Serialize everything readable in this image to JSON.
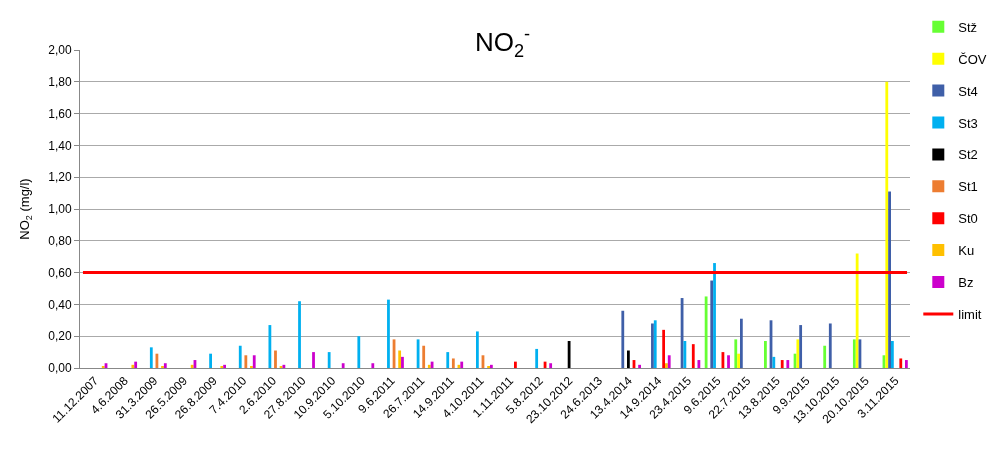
{
  "chart_data": {
    "type": "bar",
    "title": "NO$_{2}$$^{-}$",
    "ylabel": "NO$_{2}$ (mg/l)",
    "categories": [
      "11.12.2007",
      "4.6.2008",
      "31.3.2009",
      "26.5.2009",
      "26.8.2009",
      "7.4.2010",
      "2.6.2010",
      "27.8.2010",
      "10.9.2010",
      "5.10.2010",
      "9.6.2011",
      "26.7.2011",
      "14.9.2011",
      "4.10.2011",
      "1.11.2011",
      "5.8.2012",
      "23.10.2012",
      "24.6.2013",
      "13.4.2014",
      "14.9.2014",
      "23.4.2015",
      "9.6.2015",
      "22.7.2015",
      "13.8.2015",
      "9.9.2015",
      "13.10.2015",
      "20.10.2015",
      "3.11.2015"
    ],
    "series": [
      {
        "name": "Stž",
        "color": "#66ff33",
        "values": [
          null,
          null,
          null,
          null,
          null,
          null,
          null,
          null,
          null,
          null,
          null,
          null,
          null,
          null,
          null,
          null,
          null,
          null,
          null,
          null,
          null,
          0.45,
          0.18,
          0.17,
          0.09,
          0.14,
          0.18,
          0.08
        ]
      },
      {
        "name": "ČOV",
        "color": "#ffff00",
        "values": [
          null,
          null,
          null,
          null,
          null,
          null,
          null,
          null,
          null,
          null,
          null,
          null,
          null,
          null,
          null,
          null,
          null,
          null,
          null,
          null,
          null,
          null,
          0.09,
          null,
          0.18,
          null,
          0.72,
          1.8
        ]
      },
      {
        "name": "St4",
        "color": "#3f5fa8",
        "values": [
          null,
          null,
          null,
          null,
          null,
          null,
          null,
          null,
          null,
          null,
          null,
          null,
          null,
          null,
          null,
          null,
          null,
          null,
          0.36,
          0.28,
          0.44,
          0.55,
          0.31,
          0.3,
          0.27,
          0.28,
          0.18,
          1.11
        ]
      },
      {
        "name": "St3",
        "color": "#00b0f0",
        "values": [
          null,
          null,
          0.13,
          null,
          0.09,
          0.14,
          0.27,
          0.42,
          0.1,
          0.2,
          0.43,
          0.18,
          0.1,
          0.23,
          null,
          0.12,
          null,
          null,
          null,
          0.3,
          0.17,
          0.66,
          null,
          0.07,
          null,
          null,
          null,
          0.17
        ]
      },
      {
        "name": "St2",
        "color": "#000000",
        "values": [
          null,
          null,
          null,
          null,
          null,
          null,
          null,
          null,
          null,
          null,
          null,
          null,
          null,
          null,
          null,
          null,
          0.17,
          null,
          0.11,
          null,
          null,
          null,
          null,
          null,
          null,
          null,
          null,
          null
        ]
      },
      {
        "name": "St1",
        "color": "#ed7d31",
        "values": [
          null,
          null,
          0.09,
          null,
          null,
          0.08,
          0.11,
          null,
          null,
          null,
          0.18,
          0.14,
          0.06,
          0.08,
          null,
          null,
          null,
          null,
          null,
          null,
          null,
          null,
          null,
          null,
          null,
          null,
          null,
          null
        ]
      },
      {
        "name": "St0",
        "color": "#ff0000",
        "values": [
          null,
          null,
          null,
          null,
          null,
          null,
          null,
          null,
          null,
          null,
          null,
          null,
          null,
          null,
          0.04,
          0.04,
          null,
          null,
          0.05,
          0.24,
          0.15,
          0.1,
          null,
          0.05,
          null,
          null,
          null,
          0.06
        ]
      },
      {
        "name": "Ku",
        "color": "#ffc000",
        "values": [
          0.01,
          0.02,
          0.01,
          0.02,
          0.01,
          0.01,
          0.01,
          null,
          null,
          null,
          0.11,
          0.02,
          0.02,
          0.01,
          null,
          null,
          null,
          null,
          null,
          0.03,
          null,
          null,
          null,
          null,
          null,
          null,
          null,
          null
        ]
      },
      {
        "name": "Bz",
        "color": "#cc00cc",
        "values": [
          0.03,
          0.04,
          0.03,
          0.05,
          0.02,
          0.08,
          0.02,
          0.1,
          0.03,
          0.03,
          0.07,
          0.04,
          0.04,
          0.02,
          null,
          0.03,
          null,
          null,
          0.02,
          0.08,
          0.05,
          0.08,
          null,
          0.05,
          null,
          null,
          null,
          0.05
        ]
      }
    ],
    "ref_lines": [
      {
        "axis": "y",
        "value": 0.6,
        "label": "limit",
        "color": "#ff0000"
      }
    ],
    "ylim": [
      0,
      2
    ],
    "yticks": [
      {
        "value": 0,
        "label": "0,00"
      },
      {
        "value": 0.2,
        "label": "0,20"
      },
      {
        "value": 0.4,
        "label": "0,40"
      },
      {
        "value": 0.6,
        "label": "0,60"
      },
      {
        "value": 0.8,
        "label": "0,80"
      },
      {
        "value": 1.0,
        "label": "1,00"
      },
      {
        "value": 1.2,
        "label": "1,20"
      },
      {
        "value": 1.4,
        "label": "1,40"
      },
      {
        "value": 1.6,
        "label": "1,60"
      },
      {
        "value": 1.8,
        "label": "1,80"
      },
      {
        "value": 2.0,
        "label": "2,00"
      }
    ],
    "grid": "y",
    "legend": "right"
  }
}
